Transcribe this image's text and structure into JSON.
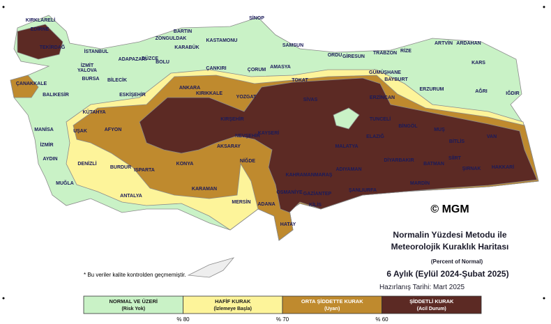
{
  "map": {
    "cities": [
      "KIRKLARELİ",
      "EDİRNE",
      "TEKİRDAĞ",
      "İSTANBUL",
      "SİNOP",
      "BARTIN",
      "ZONGULDAK",
      "KASTAMONU",
      "KARABÜK",
      "SAMSUN",
      "ORDU",
      "GİRESUN",
      "TRABZON",
      "RİZE",
      "ARTVİN",
      "ARDAHAN",
      "ADAPAZARI",
      "DÜZCE",
      "BOLU",
      "İZMİT",
      "YALOVA",
      "KARS",
      "BURSA",
      "BİLECİK",
      "ÇANKIRI",
      "ÇORUM",
      "AMASYA",
      "TOKAT",
      "GÜMÜŞHANE",
      "BAYBURT",
      "ÇANAKKALE",
      "BALIKESİR",
      "ESKİŞEHİR",
      "ANKARA",
      "KIRIKKALE",
      "YOZGAT",
      "SİVAS",
      "ERZİNCAN",
      "ERZURUM",
      "AĞRI",
      "IĞDIR",
      "KÜTAHYA",
      "KIRŞEHİR",
      "TUNCELİ",
      "BİNGÖL",
      "MUŞ",
      "UŞAK",
      "AFYON",
      "NEVŞEHİR",
      "KAYSERİ",
      "MALATYA",
      "ELAZIĞ",
      "BİTLİS",
      "VAN",
      "MANİSA",
      "İZMİR",
      "AKSARAY",
      "AYDIN",
      "DENİZLİ",
      "BURDUR",
      "ISPARTA",
      "KONYA",
      "NİĞDE",
      "KAHRAMANMARAŞ",
      "ADIYAMAN",
      "DİYARBAKIR",
      "BATMAN",
      "SİİRT",
      "ŞIRNAK",
      "HAKKARİ",
      "MUĞLA",
      "KARAMAN",
      "OSMANİYE",
      "GAZİANTEP",
      "ŞANLIURFA",
      "MARDİN",
      "ANTALYA",
      "MERSİN",
      "ADANA",
      "KİLİS",
      "HATAY"
    ],
    "watermark": "© MGM",
    "note": "* Bu veriler kalite kontrolden geçmemiştir."
  },
  "header": {
    "title_lines": [
      "Normalin Yüzdesi Metodu ile",
      "Meteorolojik Kuraklık Haritası"
    ],
    "subtitle": "(Percent of Normal)",
    "period": "6 Aylık (Eylül 2024-Şubat 2025)",
    "prepared": "Hazırlanış Tarihi: Mart 2025"
  },
  "legend": {
    "classes": [
      {
        "label": "NORMAL VE ÜZERİ",
        "sub": "(Risk Yok)",
        "color": "#c9f2c6"
      },
      {
        "label": "HAFİF KURAK",
        "sub": "(İzlemeye Başla)",
        "color": "#fdf49a"
      },
      {
        "label": "ORTA ŞİDDETTE KURAK",
        "sub": "(Uyarı)",
        "color": "#bf8a2e"
      },
      {
        "label": "ŞİDDETLİ KURAK",
        "sub": "(Acil Durum)",
        "color": "#5c2a24"
      }
    ],
    "thresholds": [
      "% 80",
      "% 70",
      "% 60"
    ]
  }
}
